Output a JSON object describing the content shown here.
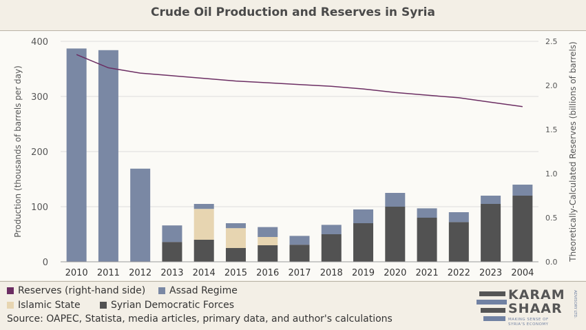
{
  "title": "Crude Oil Production and Reserves in Syria",
  "chart_data": {
    "type": "bar",
    "stacked": true,
    "categories": [
      "2010",
      "2011",
      "2012",
      "2013",
      "2014",
      "2015",
      "2016",
      "2017",
      "2018",
      "2019",
      "2020",
      "2021",
      "2022",
      "2023",
      "2004"
    ],
    "series": [
      {
        "name": "Syrian Democratic Forces",
        "color": "#525252",
        "values": [
          0,
          0,
          0,
          36,
          40,
          25,
          30,
          31,
          50,
          70,
          100,
          80,
          72,
          105,
          120
        ]
      },
      {
        "name": "Islamic State",
        "color": "#e7d5b1",
        "values": [
          0,
          0,
          0,
          0,
          56,
          36,
          15,
          0,
          0,
          0,
          0,
          0,
          0,
          0,
          0
        ]
      },
      {
        "name": "Assad Regime",
        "color": "#7a88a4",
        "values": [
          387,
          384,
          169,
          30,
          9,
          9,
          18,
          16,
          17,
          25,
          25,
          17,
          18,
          15,
          20
        ]
      }
    ],
    "line_series": {
      "name": "Reserves (right-hand side)",
      "color": "#6b2d62",
      "axis": "right",
      "values": [
        2.35,
        2.2,
        2.14,
        2.11,
        2.08,
        2.05,
        2.03,
        2.01,
        1.99,
        1.96,
        1.92,
        1.89,
        1.86,
        1.81,
        1.76
      ]
    },
    "ylabel": "Production (thousands of barrels per day)",
    "ylabel_right": "Theoretically-Calculated Reserves (billions of barrels)",
    "ylim": [
      0,
      400
    ],
    "ylim_right": [
      0,
      2.5
    ],
    "yticks": [
      0,
      100,
      200,
      300,
      400
    ],
    "yticks_right_labels": [
      "0.0",
      "0.5",
      "1.0",
      "1.5",
      "2.0",
      "2.5"
    ],
    "grid": "horizontal",
    "legend_placement": "bottom-left"
  },
  "legend": [
    {
      "label": "Reserves (right-hand side)",
      "color": "#6b2d62"
    },
    {
      "label": "Assad Regime",
      "color": "#7a88a4"
    },
    {
      "label": "Islamic State",
      "color": "#e7d5b1"
    },
    {
      "label": "Syrian Democratic Forces",
      "color": "#525252"
    }
  ],
  "source": "Source: OAPEC, Statista, media articles, primary data, and author's calculations",
  "logo": {
    "line1": "KARAM",
    "line2": "SHAAR",
    "tagline1": "MAKING SENSE OF",
    "tagline2": "SYRIA'S ECONOMY",
    "side": "ADVISORY LTD."
  }
}
